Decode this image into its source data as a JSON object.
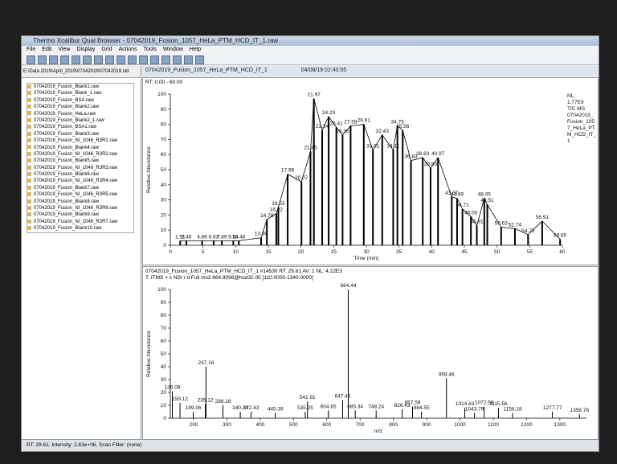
{
  "window": {
    "title": "Thermo Xcalibur Qual Browser - 07042019_Fusion_1057_HeLa_PTM_HCD_IT_1.raw",
    "menu": [
      "File",
      "Edit",
      "View",
      "Display",
      "Grid",
      "Actions",
      "Tools",
      "Window",
      "Help"
    ]
  },
  "file_panel": {
    "path": "E:\\Data 2019\\April_2019\\07042019\\07042019.sld",
    "files": [
      "07042019_Fusion_Blank1.raw",
      "07042019_Fusion_Blank_1.raw",
      "07042019_Fusion_BSA.raw",
      "07042019_Fusion_Blank2.raw",
      "07042019_Fusion_HeLa.raw",
      "07042019_Fusion_Blank2_1.raw",
      "07042019_Fusion_BSA1.raw",
      "07042019_Fusion_Blank3.raw",
      "07042019_Fusion_NI_1046_R3R1.raw",
      "07042019_Fusion_Blank4.raw",
      "07042019_Fusion_NI_1046_R3R2.raw",
      "07042019_Fusion_Blank5.raw",
      "07042019_Fusion_NI_1046_R3R3.raw",
      "07042019_Fusion_Blank6.raw",
      "07042019_Fusion_NI_1046_R3R4.raw",
      "07042019_Fusion_Blank7.raw",
      "07042019_Fusion_NI_1046_R3R5.raw",
      "07042019_Fusion_Blank8.raw",
      "07042019_Fusion_NI_1046_R3R6.raw",
      "07042019_Fusion_Blank9.raw",
      "07042019_Fusion_NI_1046_R3R7.raw",
      "07042019_Fusion_Blank10.raw"
    ]
  },
  "header": {
    "file": "07042019_Fusion_1057_HeLa_PTM_HCD_IT_1",
    "date": "04/08/19 02:40:55"
  },
  "chromatogram": {
    "range": "RT: 0.00 - 60.00",
    "y_label": "Relative Abundance",
    "x_label": "Time (min)",
    "legend": [
      "NL:",
      "1.77E9",
      "TIC MS",
      "07042019_",
      "Fusion_105",
      "7_HeLa_PT",
      "M_HCD_IT_",
      "1"
    ],
    "xlim": [
      0,
      60
    ],
    "xticks": [
      0,
      5,
      10,
      15,
      20,
      25,
      30,
      35,
      40,
      45,
      50,
      55,
      60
    ],
    "ylim": [
      0,
      100
    ],
    "yticks": [
      0,
      10,
      20,
      30,
      40,
      50,
      60,
      70,
      80,
      90,
      100
    ],
    "color": "#000000",
    "rt": [
      1.51,
      2.46,
      4.86,
      6.63,
      7.89,
      9.64,
      10.48,
      13.9,
      14.78,
      16.22,
      16.53,
      17.96,
      20.07,
      21.45,
      21.97,
      23.24,
      24.23,
      25.41,
      26.36,
      27.59,
      29.61,
      31.01,
      32.43,
      34.11,
      34.75,
      35.56,
      36.83,
      38.63,
      39.83,
      40.97,
      43.07,
      43.89,
      44.71,
      46,
      46.91,
      48.05,
      48.51,
      50.63,
      52.74,
      54.75,
      56.91,
      59.65
    ],
    "rt_labels": [
      "1.51",
      "2.46",
      "4.86",
      "6.63",
      "7.89",
      "9.64",
      "10.48",
      "13.90",
      "14.78",
      "16.22",
      "16.53",
      "17.96",
      "20.07",
      "21.45",
      "21.97",
      "23.24",
      "24.23",
      "25.41",
      "26.36",
      "27.59",
      "29.61",
      "31.01",
      "32.43",
      "34.11",
      "34.75",
      "35.56",
      "36.83",
      "38.63",
      "39.83",
      "40.97",
      "43.07",
      "43.89",
      "44.71",
      "46.00",
      "46.91",
      "48.05",
      "48.51",
      "50.63",
      "52.74",
      "54.75",
      "56.91",
      "59.65"
    ],
    "abundance": [
      3,
      3,
      3,
      3,
      3,
      3,
      3,
      5,
      17,
      21,
      25,
      47,
      42,
      62,
      97,
      76,
      85,
      78,
      73,
      79,
      80,
      63,
      73,
      63,
      79,
      76,
      56,
      58,
      51,
      58,
      32,
      31,
      24,
      19,
      13,
      31,
      27,
      12,
      11,
      7,
      16,
      4
    ]
  },
  "spectrum": {
    "title": "07042019_Fusion_1057_HeLa_PTM_HCD_IT_1 #14530  RT: 29.61  AV: 1  NL: 4.22E3",
    "filter": "T: ITMS + c NSI r d Full ms2 664.9098@hcd32.00 [110.0000-1340.0000]",
    "y_label": "Relative Abundance",
    "x_label": "m/z",
    "xlim": [
      130,
      1380
    ],
    "xticks": [
      200,
      300,
      400,
      500,
      600,
      700,
      800,
      900,
      1000,
      1100,
      1200,
      1300
    ],
    "ylim": [
      0,
      100
    ],
    "yticks": [
      0,
      10,
      20,
      30,
      40,
      50,
      60,
      70,
      80,
      90,
      100
    ],
    "color": "#000000",
    "mz": [
      136.08,
      159.12,
      199.06,
      235.12,
      237.16,
      288.18,
      340.24,
      372.43,
      445.39,
      535.25,
      541.91,
      604.65,
      647.46,
      664.44,
      685.34,
      748.24,
      826.43,
      857.59,
      884.55,
      959.46,
      1014.63,
      1043.79,
      1072.59,
      1115.56,
      1158.18,
      1277.77,
      1358.78
    ],
    "intensity": [
      21,
      12,
      5,
      11,
      40,
      10,
      5,
      5,
      4,
      5,
      13,
      6,
      14,
      100,
      6,
      6,
      7,
      9,
      5,
      31,
      8,
      4,
      9,
      8,
      4,
      5,
      3
    ]
  },
  "status": "RT: 29.61, Intensity: 2.63e+06, Scan Filter: (none)"
}
